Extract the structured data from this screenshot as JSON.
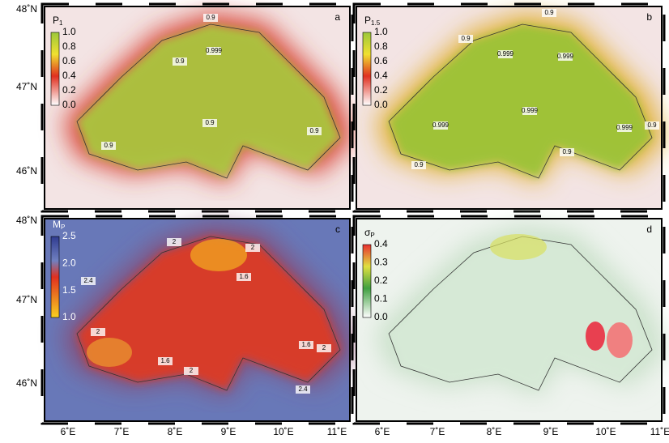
{
  "axes": {
    "lat": [
      "48˚N",
      "47˚N",
      "46˚N"
    ],
    "lon": [
      "6˚E",
      "7˚E",
      "8˚E",
      "9˚E",
      "10˚E",
      "11˚E"
    ]
  },
  "panels": [
    {
      "letter": "a",
      "title": {
        "main": "P",
        "sub": "1"
      },
      "colorbar": [
        "1.0",
        "0.8",
        "0.6",
        "0.4",
        "0.2",
        "0.0"
      ],
      "contour_labels": [
        "0.9",
        "0.999",
        "0.9",
        "0.9",
        "0.9",
        "0.9"
      ]
    },
    {
      "letter": "b",
      "title": {
        "main": "P",
        "sub": "1.5"
      },
      "colorbar": [
        "1.0",
        "0.8",
        "0.6",
        "0.4",
        "0.2",
        "0.0"
      ],
      "contour_labels": [
        "0.9",
        "0.9",
        "0.999",
        "0.999",
        "0.999",
        "0.999",
        "0.999",
        "0.9",
        "0.9",
        "0.9"
      ]
    },
    {
      "letter": "c",
      "title": {
        "main": "M",
        "sub": "P"
      },
      "colorbar": [
        "2.5",
        "2.0",
        "1.5",
        "1.0"
      ],
      "contour_labels": [
        "2",
        "2",
        "1.6",
        "2.4",
        "2",
        "1.6",
        "2",
        "1.6",
        "2",
        "2.4"
      ]
    },
    {
      "letter": "d",
      "title": {
        "main": "σ",
        "sub": "P"
      },
      "colorbar": [
        "0.4",
        "0.3",
        "0.2",
        "0.1",
        "0.0"
      ],
      "contour_labels": []
    }
  ]
}
